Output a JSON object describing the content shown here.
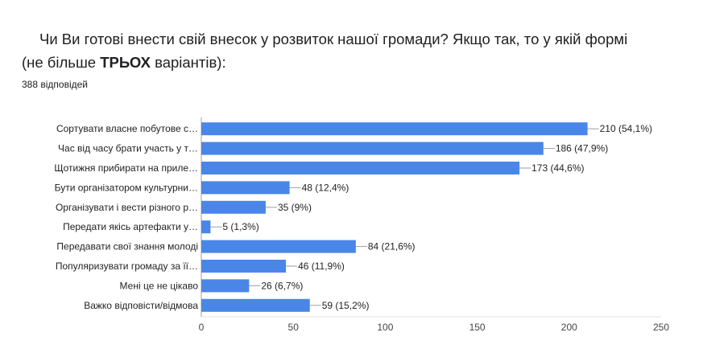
{
  "question": {
    "prefix": "Чи Ви готові внести свій внесок у розвиток нашої громади? Якщо так, то у якій формі (не більше ",
    "bold": "ТРЬОХ",
    "suffix": " варіантів):"
  },
  "responses_count": "388 відповідей",
  "colors": {
    "bar": "#4a86e8",
    "axis": "#9e9e9e",
    "grid": "#e0e0e0"
  },
  "chart_data": {
    "type": "bar",
    "orientation": "horizontal",
    "categories": [
      "Сортувати власне побутове с…",
      "Час від часу брати участь у т…",
      "Щотижня прибирати на приле…",
      "Бути організатором культурни…",
      "Організувати і вести різного р…",
      "Передати якісь артефакти у…",
      "Передавати свої знання молоді",
      "Популяризувати громаду за її…",
      "Мені це не цікаво",
      "Важко відповісти/відмова"
    ],
    "values": [
      210,
      186,
      173,
      48,
      35,
      5,
      84,
      46,
      26,
      59
    ],
    "value_labels": [
      "210 (54,1%)",
      "186 (47,9%)",
      "173 (44,6%)",
      "48 (12,4%)",
      "35 (9%)",
      "5 (1,3%)",
      "84 (21,6%)",
      "46 (11,9%)",
      "26 (6,7%)",
      "59 (15,2%)"
    ],
    "xlim": [
      0,
      250
    ],
    "x_ticks": [
      "0",
      "50",
      "100",
      "150",
      "200",
      "250"
    ],
    "grid": false
  }
}
